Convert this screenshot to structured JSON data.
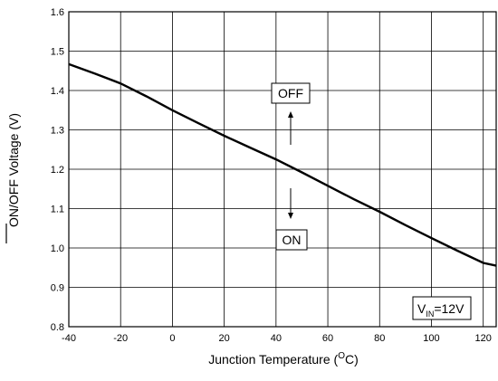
{
  "chart_data": {
    "type": "line",
    "title": "",
    "xlabel": "Junction Temperature (",
    "xlabel_sup": "O",
    "xlabel_tail": "C)",
    "ylabel": "ON/OFF Voltage (V)",
    "ylabel_overlined": "ON",
    "xlim": [
      -40,
      125
    ],
    "ylim": [
      0.8,
      1.6
    ],
    "x_ticks": [
      "-40",
      "-20",
      "0",
      "20",
      "40",
      "60",
      "80",
      "100",
      "120"
    ],
    "y_ticks": [
      "0.8",
      "0.9",
      "1.0",
      "1.1",
      "1.2",
      "1.3",
      "1.4",
      "1.5",
      "1.6"
    ],
    "grid": true,
    "series": [
      {
        "x": [
          -40,
          -30,
          -20,
          -10,
          0,
          10,
          20,
          30,
          40,
          50,
          60,
          70,
          80,
          90,
          100,
          110,
          120,
          125
        ],
        "y": [
          1.467,
          1.443,
          1.418,
          1.385,
          1.35,
          1.317,
          1.285,
          1.255,
          1.225,
          1.192,
          1.158,
          1.124,
          1.092,
          1.058,
          1.025,
          0.993,
          0.962,
          0.955
        ]
      }
    ],
    "annotations": {
      "off_label": "OFF",
      "on_label": "ON",
      "condition_v": "V",
      "condition_sub": "IN",
      "condition_value": "=12V"
    }
  }
}
